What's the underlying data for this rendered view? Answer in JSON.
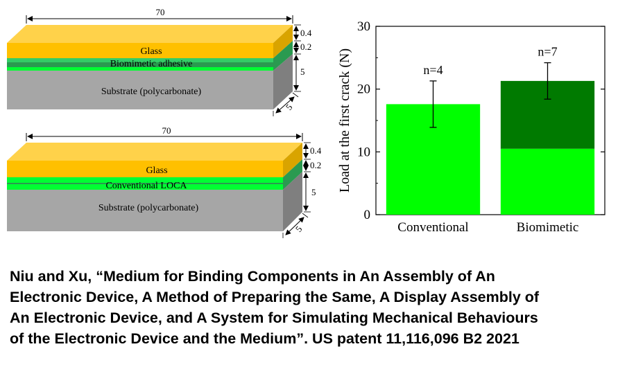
{
  "diagram_top": {
    "length_label": "70",
    "glass_label": "Glass",
    "adhesive_label": "Biomimetic  adhesive",
    "substrate_label": "Substrate (polycarbonate)",
    "thickness_labels": [
      "0.4",
      "0.2",
      "5"
    ],
    "depth_label": "5"
  },
  "diagram_bottom": {
    "length_label": "70",
    "glass_label": "Glass",
    "adhesive_label": "Conventional  LOCA",
    "substrate_label": "Substrate (polycarbonate)",
    "thickness_labels": [
      "0.4",
      "0.2",
      "5"
    ],
    "depth_label": "5"
  },
  "colors": {
    "glass_front": "#ffc000",
    "glass_top": "#ffd24a",
    "glass_side": "#d9a400",
    "adhesive_bright": "#00ff33",
    "adhesive_mid": "#33cc66",
    "adhesive_dark": "#2a9a50",
    "substrate_front": "#a6a6a6",
    "substrate_side": "#7f7f7f",
    "bar_light": "#00ff00",
    "bar_dark": "#007a00"
  },
  "chart_data": {
    "type": "bar",
    "categories": [
      "Conventional",
      "Biomimetic"
    ],
    "values": [
      17.6,
      21.3
    ],
    "stacked_lower_part": [
      17.6,
      10.5
    ],
    "error_low": [
      13.9,
      18.4
    ],
    "error_high": [
      21.3,
      24.2
    ],
    "annotations": [
      "n=4",
      "n=7"
    ],
    "ylabel": "Load at the first crack (N)",
    "xlabel": "",
    "ylim": [
      0,
      30
    ],
    "yticks": [
      0,
      10,
      20,
      30
    ],
    "grid": false
  },
  "caption": {
    "lines": [
      "Niu and Xu, “Medium for Binding Components in An Assembly of An",
      "Electronic Device, A Method of Preparing the Same, A Display Assembly of",
      "An Electronic Device, and A System for Simulating Mechanical Behaviours",
      "of the Electronic Device and the Medium”. US patent 11,116,096 B2 2021"
    ]
  }
}
